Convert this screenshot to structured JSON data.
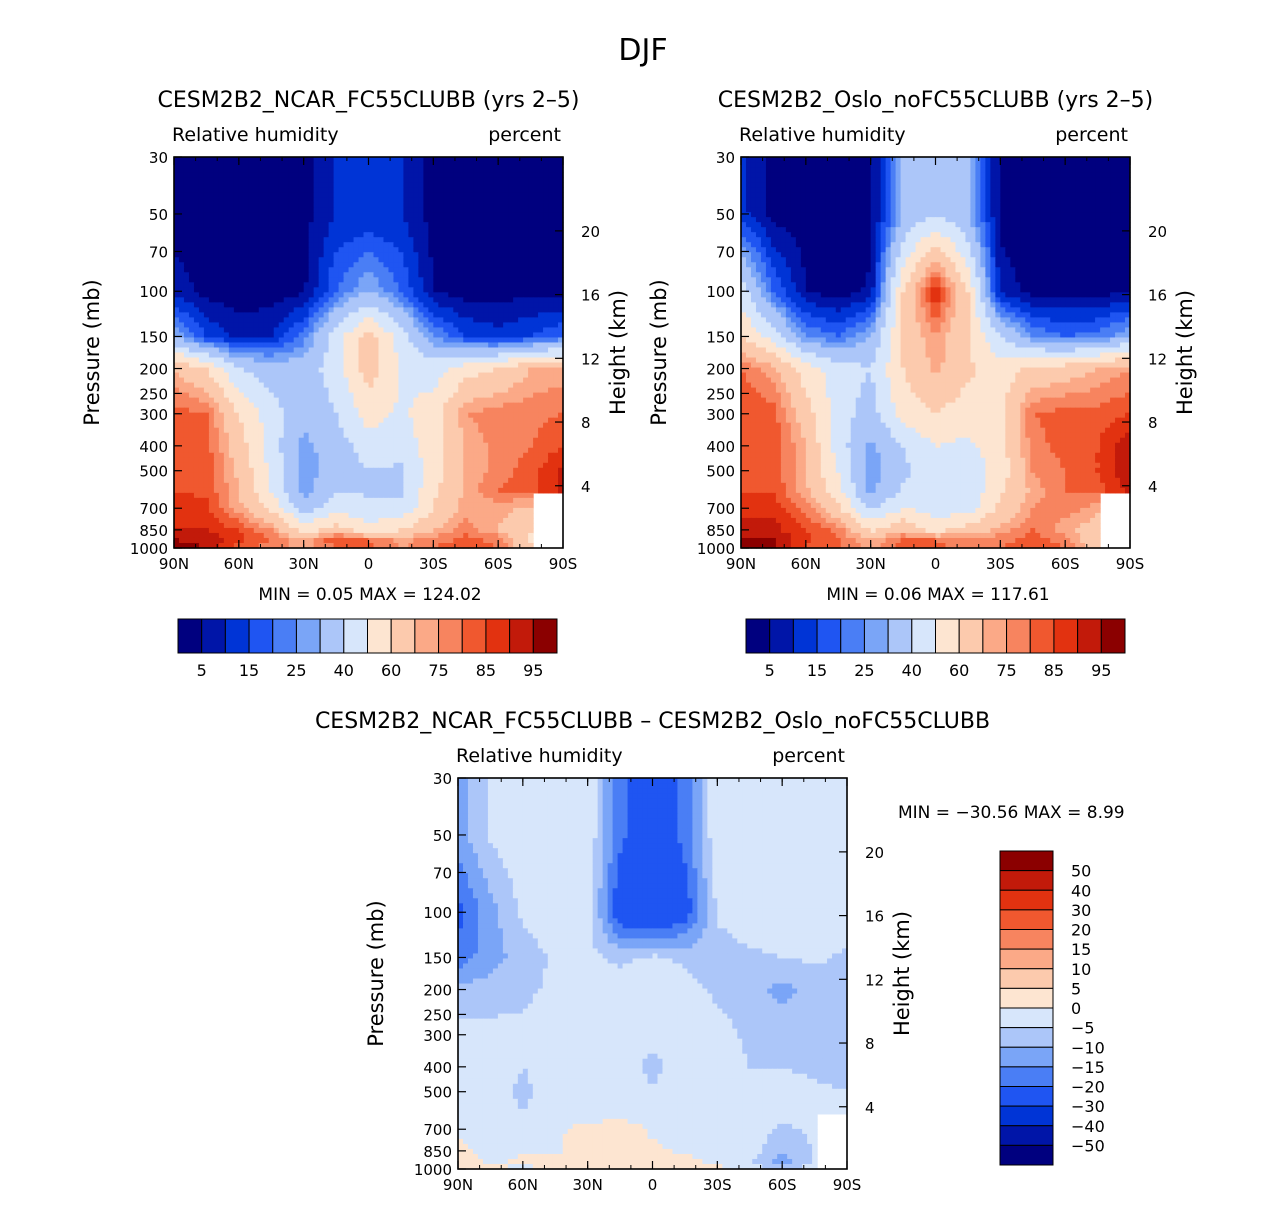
{
  "figure_title": "DJF",
  "chart_data": [
    {
      "type": "heatmap",
      "subtype": "filled-contour",
      "title": "CESM2B2_NCAR_FC55CLUBB (yrs 2–5)",
      "left_label": "Relative humidity",
      "right_label": "percent",
      "ylabel": "Pressure (mb)",
      "ylabel_right": "Height (km)",
      "xlabel": "",
      "x_ticks": [
        "90N",
        "60N",
        "30N",
        "0",
        "30S",
        "60S",
        "90S"
      ],
      "y_ticks": [
        "30",
        "50",
        "70",
        "100",
        "150",
        "200",
        "250",
        "300",
        "400",
        "500",
        "700",
        "850",
        "1000"
      ],
      "y_right_ticks": [
        "20",
        "16",
        "12",
        "8",
        "4"
      ],
      "xlim": [
        90,
        -90
      ],
      "ylim": [
        1000,
        30
      ],
      "min_label": "MIN =",
      "min_value": "0.05",
      "max_label": "MAX =",
      "max_value": "124.02",
      "colorbar": {
        "levels": [
          5,
          10,
          15,
          20,
          25,
          30,
          40,
          50,
          60,
          70,
          75,
          80,
          85,
          90,
          95
        ],
        "labels": [
          "5",
          "15",
          "25",
          "40",
          "60",
          "75",
          "85",
          "95"
        ],
        "colors": [
          "#00007f",
          "#0015a8",
          "#0034d6",
          "#1f55f2",
          "#4a7ef5",
          "#7aa5f7",
          "#acc6f9",
          "#d7e6fb",
          "#fde5d1",
          "#fccaad",
          "#fba987",
          "#f7845f",
          "#f0582f",
          "#e23210",
          "#c21a0a",
          "#8b0000"
        ]
      },
      "grid_lat": [
        "90N",
        "75N",
        "60N",
        "45N",
        "30N",
        "15N",
        "0",
        "15S",
        "30S",
        "45S",
        "60S",
        "75S",
        "90S"
      ],
      "grid_p": [
        "50",
        "100",
        "150",
        "200",
        "300",
        "400",
        "500",
        "600",
        "700",
        "850",
        "925",
        "1000"
      ],
      "grid_values": [
        [
          2,
          2,
          2,
          2,
          3,
          10,
          10,
          10,
          3,
          2,
          2,
          2,
          2
        ],
        [
          8,
          3,
          2,
          2,
          4,
          20,
          30,
          20,
          5,
          2,
          3,
          3,
          3
        ],
        [
          30,
          15,
          8,
          10,
          22,
          45,
          65,
          45,
          25,
          15,
          12,
          15,
          20
        ],
        [
          70,
          60,
          40,
          35,
          35,
          45,
          65,
          50,
          45,
          55,
          60,
          70,
          72
        ],
        [
          82,
          80,
          60,
          45,
          32,
          40,
          55,
          48,
          55,
          75,
          78,
          78,
          80
        ],
        [
          85,
          82,
          65,
          45,
          28,
          35,
          45,
          45,
          55,
          70,
          78,
          80,
          85
        ],
        [
          85,
          84,
          68,
          48,
          25,
          35,
          40,
          38,
          55,
          70,
          78,
          82,
          92
        ],
        [
          85,
          84,
          70,
          50,
          26,
          40,
          38,
          38,
          58,
          72,
          80,
          82,
          92
        ],
        [
          88,
          86,
          72,
          58,
          35,
          45,
          45,
          42,
          60,
          72,
          72,
          68,
          null
        ],
        [
          90,
          90,
          85,
          75,
          55,
          65,
          52,
          60,
          70,
          78,
          70,
          62,
          null
        ],
        [
          95,
          94,
          86,
          80,
          70,
          85,
          80,
          74,
          76,
          82,
          78,
          58,
          null
        ],
        [
          96,
          95,
          82,
          78,
          72,
          80,
          82,
          74,
          80,
          85,
          80,
          62,
          null
        ]
      ]
    },
    {
      "type": "heatmap",
      "subtype": "filled-contour",
      "title": "CESM2B2_Oslo_noFC55CLUBB (yrs 2–5)",
      "left_label": "Relative humidity",
      "right_label": "percent",
      "ylabel": "Pressure (mb)",
      "ylabel_right": "Height (km)",
      "xlabel": "",
      "x_ticks": [
        "90N",
        "60N",
        "30N",
        "0",
        "30S",
        "60S",
        "90S"
      ],
      "y_ticks": [
        "30",
        "50",
        "70",
        "100",
        "150",
        "200",
        "250",
        "300",
        "400",
        "500",
        "700",
        "850",
        "1000"
      ],
      "y_right_ticks": [
        "20",
        "16",
        "12",
        "8",
        "4"
      ],
      "xlim": [
        90,
        -90
      ],
      "ylim": [
        1000,
        30
      ],
      "min_label": "MIN =",
      "min_value": "0.06",
      "max_label": "MAX =",
      "max_value": "117.61",
      "colorbar": {
        "levels": [
          5,
          10,
          15,
          20,
          25,
          30,
          40,
          50,
          60,
          70,
          75,
          80,
          85,
          90,
          95
        ],
        "labels": [
          "5",
          "15",
          "25",
          "40",
          "60",
          "75",
          "85",
          "95"
        ],
        "colors": [
          "#00007f",
          "#0015a8",
          "#0034d6",
          "#1f55f2",
          "#4a7ef5",
          "#7aa5f7",
          "#acc6f9",
          "#d7e6fb",
          "#fde5d1",
          "#fccaad",
          "#fba987",
          "#f7845f",
          "#f0582f",
          "#e23210",
          "#c21a0a",
          "#8b0000"
        ]
      },
      "grid_lat": [
        "90N",
        "75N",
        "60N",
        "45N",
        "30N",
        "15N",
        "0",
        "15S",
        "30S",
        "45S",
        "60S",
        "75S",
        "90S"
      ],
      "grid_p": [
        "50",
        "100",
        "150",
        "200",
        "300",
        "400",
        "500",
        "600",
        "700",
        "850",
        "925",
        "1000"
      ],
      "grid_values": [
        [
          12,
          3,
          2,
          2,
          3,
          30,
          40,
          30,
          3,
          2,
          2,
          2,
          2
        ],
        [
          45,
          20,
          5,
          2,
          6,
          60,
          90,
          60,
          8,
          3,
          3,
          3,
          4
        ],
        [
          60,
          45,
          25,
          20,
          30,
          62,
          75,
          60,
          40,
          25,
          20,
          22,
          30
        ],
        [
          80,
          72,
          55,
          45,
          40,
          60,
          72,
          62,
          55,
          62,
          65,
          70,
          75
        ],
        [
          85,
          82,
          65,
          45,
          35,
          55,
          60,
          55,
          58,
          80,
          82,
          82,
          85
        ],
        [
          85,
          84,
          70,
          45,
          28,
          40,
          50,
          48,
          55,
          78,
          82,
          85,
          95
        ],
        [
          85,
          84,
          70,
          50,
          25,
          38,
          45,
          42,
          55,
          75,
          80,
          85,
          95
        ],
        [
          85,
          84,
          72,
          52,
          28,
          42,
          40,
          42,
          58,
          72,
          80,
          82,
          92
        ],
        [
          88,
          88,
          78,
          62,
          38,
          50,
          45,
          45,
          62,
          75,
          78,
          72,
          null
        ],
        [
          92,
          92,
          85,
          78,
          58,
          68,
          55,
          65,
          72,
          80,
          72,
          65,
          null
        ],
        [
          96,
          95,
          86,
          80,
          70,
          80,
          80,
          76,
          78,
          82,
          78,
          62,
          null
        ],
        [
          97,
          96,
          84,
          80,
          74,
          82,
          82,
          76,
          80,
          85,
          80,
          64,
          null
        ]
      ]
    },
    {
      "type": "heatmap",
      "subtype": "filled-contour",
      "title": "CESM2B2_NCAR_FC55CLUBB – CESM2B2_Oslo_noFC55CLUBB",
      "left_label": "Relative humidity",
      "right_label": "percent",
      "ylabel": "Pressure (mb)",
      "ylabel_right": "Height (km)",
      "xlabel": "",
      "x_ticks": [
        "90N",
        "60N",
        "30N",
        "0",
        "30S",
        "60S",
        "90S"
      ],
      "y_ticks": [
        "30",
        "50",
        "70",
        "100",
        "150",
        "200",
        "250",
        "300",
        "400",
        "500",
        "700",
        "850",
        "1000"
      ],
      "y_right_ticks": [
        "20",
        "16",
        "12",
        "8",
        "4"
      ],
      "xlim": [
        90,
        -90
      ],
      "ylim": [
        1000,
        30
      ],
      "min_label": "MIN =",
      "min_value": "−30.56",
      "max_label": "MAX =",
      "max_value": "8.99",
      "colorbar": {
        "levels": [
          -50,
          -40,
          -30,
          -20,
          -15,
          -10,
          -5,
          0,
          5,
          10,
          15,
          20,
          30,
          40,
          50
        ],
        "labels": [
          "50",
          "40",
          "30",
          "20",
          "15",
          "10",
          "5",
          "0",
          "−5",
          "−10",
          "−15",
          "−20",
          "−30",
          "−40",
          "−50"
        ],
        "colors": [
          "#00007f",
          "#0015a8",
          "#0034d6",
          "#1f55f2",
          "#4a7ef5",
          "#7aa5f7",
          "#acc6f9",
          "#d7e6fb",
          "#fde5d1",
          "#fccaad",
          "#fba987",
          "#f7845f",
          "#f0582f",
          "#e23210",
          "#c21a0a",
          "#8b0000"
        ]
      },
      "grid_lat": [
        "90N",
        "75N",
        "60N",
        "45N",
        "30N",
        "15N",
        "0",
        "15S",
        "30S",
        "45S",
        "60S",
        "75S",
        "90S"
      ],
      "grid_p": [
        "50",
        "100",
        "150",
        "200",
        "300",
        "400",
        "500",
        "600",
        "700",
        "850",
        "925",
        "1000"
      ],
      "grid_values": [
        [
          -12,
          -4,
          -1,
          -1,
          -1,
          -18,
          -28,
          -18,
          -1,
          -1,
          -1,
          -1,
          -1
        ],
        [
          -22,
          -12,
          -4,
          -1,
          -2,
          -26,
          -30,
          -24,
          -4,
          -1,
          -1,
          -1,
          -1
        ],
        [
          -18,
          -12,
          -8,
          -4,
          -4,
          -6,
          -4,
          -6,
          -8,
          -6,
          -5,
          -4,
          -6
        ],
        [
          -8,
          -8,
          -6,
          -4,
          -3,
          -3,
          -3,
          -3,
          -6,
          -8,
          -12,
          -8,
          -8
        ],
        [
          -3,
          -3,
          -4,
          -2,
          -2,
          -3,
          -4,
          -3,
          -3,
          -6,
          -5,
          -6,
          -10
        ],
        [
          -2,
          -2,
          -5,
          -3,
          -2,
          -3,
          -6,
          -3,
          -2,
          -5,
          -5,
          -6,
          -8
        ],
        [
          -2,
          -3,
          -6,
          -3,
          -4,
          -2,
          -5,
          -2,
          -2,
          -3,
          -3,
          -4,
          -5
        ],
        [
          -1,
          -3,
          -5,
          -2,
          -4,
          -2,
          -3,
          -2,
          -2,
          -3,
          -3,
          -4,
          -3
        ],
        [
          -1,
          -2,
          -2,
          -1,
          2,
          3,
          -1,
          -1,
          -1,
          -3,
          -6,
          -4,
          null
        ],
        [
          1,
          -1,
          -1,
          -1,
          3,
          2,
          1,
          -1,
          -1,
          -3,
          -8,
          -5,
          null
        ],
        [
          3,
          -1,
          1,
          2,
          4,
          2,
          3,
          1,
          -1,
          -4,
          -14,
          -4,
          null
        ],
        [
          4,
          1,
          -1,
          1,
          2,
          1,
          3,
          2,
          1,
          -3,
          -6,
          -3,
          null
        ]
      ]
    }
  ]
}
